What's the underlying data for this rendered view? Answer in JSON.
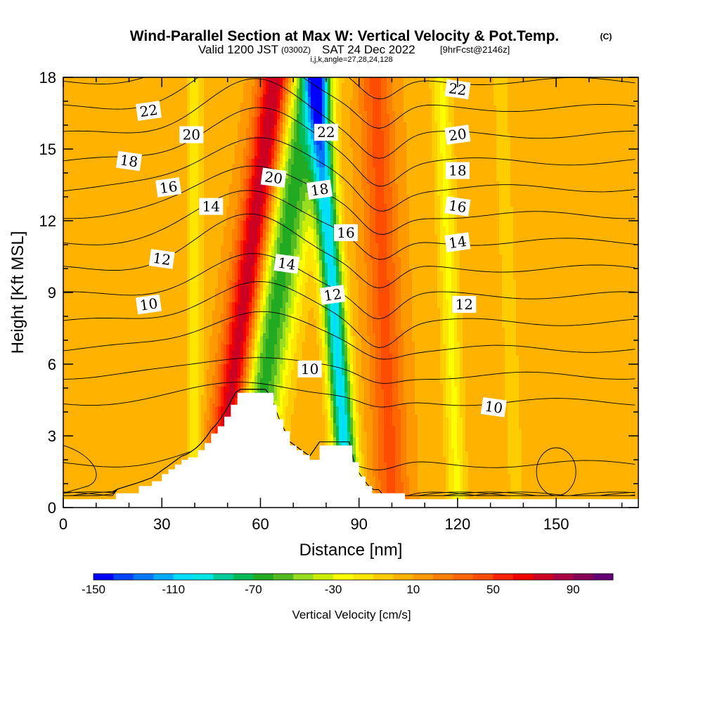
{
  "title": "Wind-Parallel Section at Max W: Vertical Velocity & Pot.Temp.",
  "copyright": "(C)",
  "valid_line": {
    "prefix": "Valid 1200 JST",
    "utc": "(0300Z)",
    "date": "SAT 24 Dec 2022",
    "fcst": "[9hrFcst@2146z]"
  },
  "index_line": "i,j,k,angle=27,28,24,128",
  "chart_data": {
    "type": "heatmap",
    "xlabel": "Distance [nm]",
    "ylabel": "Height [Kft MSL]",
    "xlim": [
      0,
      175
    ],
    "ylim": [
      0,
      18
    ],
    "x_ticks": [
      0,
      30,
      60,
      90,
      120,
      150
    ],
    "y_ticks": [
      0,
      3,
      6,
      9,
      12,
      15,
      18
    ],
    "colorbar": {
      "label": "Vertical Velocity [cm/s]",
      "min": -150,
      "max": 110,
      "step": 10,
      "tick_values": [
        -150,
        -110,
        -70,
        -30,
        10,
        50,
        90
      ],
      "colors": [
        "#0000ff",
        "#0044ff",
        "#0077ff",
        "#00aaff",
        "#00ddff",
        "#00e6e6",
        "#00cc99",
        "#00bb55",
        "#22aa22",
        "#55bb22",
        "#99dd22",
        "#ccee00",
        "#ffff00",
        "#ffe600",
        "#ffcc00",
        "#ffb300",
        "#ff9900",
        "#ff7f00",
        "#ff6600",
        "#ff4d00",
        "#ff2200",
        "#ee0000",
        "#cc0022",
        "#aa0044",
        "#880055",
        "#660077"
      ]
    },
    "features": [
      {
        "name": "downdraft",
        "x_bottom": 55,
        "x_top": 75,
        "w": -75,
        "width": 7
      },
      {
        "name": "downdraft",
        "x_bottom": 87,
        "x_top": 77,
        "w": -110,
        "width": 3.5
      },
      {
        "name": "updraft",
        "x_bottom": 47,
        "x_top": 65,
        "w": 80,
        "width": 5
      },
      {
        "name": "updraft",
        "x_bottom": 100,
        "x_top": 95,
        "w": 35,
        "width": 5
      },
      {
        "name": "downdraft",
        "x_bottom": 120,
        "x_top": 115,
        "w": -30,
        "width": 3
      },
      {
        "name": "downdraft",
        "x_bottom": 40,
        "x_top": 40,
        "w": -25,
        "width": 2.5
      },
      {
        "name": "downdraft",
        "x_bottom": 138,
        "x_top": 133,
        "w": -15,
        "width": 2.5
      }
    ],
    "terrain": [
      [
        16,
        0.6
      ],
      [
        23,
        0.9
      ],
      [
        27,
        1.1
      ],
      [
        30,
        1.4
      ],
      [
        32,
        1.6
      ],
      [
        34,
        1.8
      ],
      [
        36,
        2.0
      ],
      [
        38,
        2.1
      ],
      [
        41,
        2.4
      ],
      [
        43,
        2.7
      ],
      [
        45,
        3.1
      ],
      [
        47,
        3.4
      ],
      [
        49,
        3.8
      ],
      [
        51,
        4.3
      ],
      [
        53,
        4.8
      ],
      [
        56,
        4.8
      ],
      [
        59,
        4.8
      ],
      [
        62,
        4.8
      ],
      [
        64,
        4.3
      ],
      [
        65,
        3.7
      ],
      [
        67,
        3.2
      ],
      [
        69,
        2.6
      ],
      [
        71,
        2.4
      ],
      [
        73,
        2.2
      ],
      [
        75,
        2.0
      ],
      [
        78,
        2.6
      ],
      [
        81,
        2.6
      ],
      [
        84,
        2.6
      ],
      [
        87,
        2.6
      ],
      [
        88,
        1.9
      ],
      [
        90,
        1.3
      ],
      [
        92,
        0.9
      ],
      [
        94,
        0.6
      ],
      [
        97,
        0.6
      ]
    ],
    "theta_levels": [
      5,
      6,
      7,
      8,
      9,
      10,
      11,
      12,
      13,
      14,
      15,
      16,
      17,
      18,
      19,
      20,
      21,
      22,
      23,
      24
    ],
    "theta_labels": [
      {
        "text": "22",
        "x": 26,
        "y": 16.6
      },
      {
        "text": "20",
        "x": 39,
        "y": 15.6
      },
      {
        "text": "18",
        "x": 20,
        "y": 14.5
      },
      {
        "text": "16",
        "x": 32,
        "y": 13.4
      },
      {
        "text": "14",
        "x": 45,
        "y": 12.6
      },
      {
        "text": "12",
        "x": 30,
        "y": 10.4
      },
      {
        "text": "10",
        "x": 26,
        "y": 8.5
      },
      {
        "text": "22",
        "x": 80,
        "y": 15.7
      },
      {
        "text": "20",
        "x": 64,
        "y": 13.8
      },
      {
        "text": "18",
        "x": 78,
        "y": 13.3
      },
      {
        "text": "16",
        "x": 86,
        "y": 11.5
      },
      {
        "text": "14",
        "x": 68,
        "y": 10.2
      },
      {
        "text": "12",
        "x": 82,
        "y": 8.9
      },
      {
        "text": "10",
        "x": 75,
        "y": 5.8
      },
      {
        "text": "22",
        "x": 120,
        "y": 17.5
      },
      {
        "text": "20",
        "x": 120,
        "y": 15.6
      },
      {
        "text": "18",
        "x": 120,
        "y": 14.1
      },
      {
        "text": "16",
        "x": 120,
        "y": 12.6
      },
      {
        "text": "14",
        "x": 120,
        "y": 11.1
      },
      {
        "text": "12",
        "x": 122,
        "y": 8.5
      },
      {
        "text": "10",
        "x": 131,
        "y": 4.2
      }
    ]
  }
}
